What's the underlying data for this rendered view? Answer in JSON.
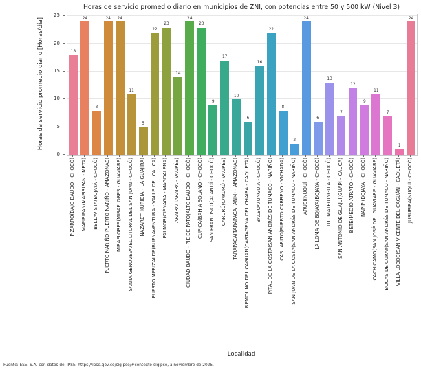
{
  "figure": {
    "title": "Horas de servicio promedio diario en municipios de ZNI, con potencias entre 50 y 500 kW (Nivel 3)",
    "xlabel": "Localidad",
    "ylabel": "Horas de servicio promedio diario [Horas/día]",
    "footer": "Fuente: ESEI S.A. con datos del IPSE, https://ipse.gov.co/sigipse/#contexto-sigipse, a noviembre de 2025."
  },
  "chart_data": {
    "type": "bar",
    "title": "Horas de servicio promedio diario en municipios de ZNI, con potencias entre 50 y 500 kW (Nivel 3)",
    "xlabel": "Localidad",
    "ylabel": "Horas de servicio promedio diario [Horas/día]",
    "ylim": [
      0,
      25.3
    ],
    "yticks": [
      0,
      5,
      10,
      15,
      20,
      25
    ],
    "grid": true,
    "legend": false,
    "value_labels_shown": true,
    "background_color": "#ffffff",
    "grid_color": "#e7e7e7",
    "spine_color": "#c9c9cf",
    "categories": [
      "PIZARRO(BAJO BAUDÓ - CHOCÓ)",
      "MAPIRIPAN(MAPIRIPAN - META)",
      "BELLAVISTA(BOJAYÁ - CHOCÓ)",
      "PUERTO NARIÑO(PUERTO NARIÑO - AMAZONAS)",
      "MIRAFLORES(MIRAFLORES - GUAVIARE)",
      "SANTA GENOVEVA(EL LITORAL DEL SAN JUAN - CHOCÓ)",
      "NAZARETH(URIBIA - LA GUAJIRA)",
      "PUERTO MERIZALDE(BUENAVENTURA - VALLE DEL CAUCA)",
      "PALMOR(CIÉNAGA - MAGDALENA)",
      "TARAIRA(TARAIRA - VAUPÉS)",
      "CIUDAD BAUDO - PIE DE PATO(ALTO BAUDO - CHOCÓ)",
      "CUPICA(BAHÍA SOLANO - CHOCÓ)",
      "SAN FRANCISCO(ACANDÍ - CHOCÓ)",
      "CARURÚ(CARURÚ - VAUPÉS)",
      "TARAPACA(TARAPACA (ANM) - AMAZONAS)",
      "REMOLINO DEL CAGUAN(CARTAGENA DEL CHAIRA - CAQUETÁ)",
      "BALBOA(UNGUÍA - CHOCÓ)",
      "PITAL DE LA COSTA(SAN ANDRÉS DE TUMACO - NARIÑO)",
      "CASUARITO(PUERTO CARREÑO - VICHADA)",
      "SAN JUAN DE LA COSTA(SAN ANDRÉS DE TUMACO - NARIÑO)",
      "ARUSI(NUQUÍ - CHOCÓ)",
      "LA LOMA DE BOJAYA(BOJAYÁ - CHOCÓ)",
      "TITUMATE(UNGUÍA - CHOCÓ)",
      "SAN ANTONIO DE GUAJUI(GUAPI - CAUCA)",
      "BETE(MEDIO ATRATO - CHOCÓ)",
      "NAPIPI(BOJAYÁ - CHOCÓ)",
      "CACHICAMO(SAN JOSÉ DEL GUAVIARE - GUAVIARE)",
      "BOCAS DE CURAY(SAN ANDRÉS DE TUMACO - NARIÑO)",
      "VILLA LOBOS(SAN VICENTE DEL CAGUÁN - CAQUETÁ)",
      "JURUBIRA(NUQUÍ - CHOCÓ)"
    ],
    "values": [
      18,
      24,
      8,
      24,
      24,
      11,
      5,
      22,
      23,
      14,
      24,
      23,
      9,
      17,
      10,
      6,
      16,
      22,
      8,
      2,
      24,
      6,
      13,
      7,
      12,
      9,
      11,
      7,
      1,
      24
    ],
    "bar_colors": [
      "#e87f97",
      "#e8815f",
      "#dd8545",
      "#cf8b39",
      "#c38f38",
      "#b79339",
      "#aa973a",
      "#9d9c3b",
      "#8da13e",
      "#76a643",
      "#57ab48",
      "#3ead5d",
      "#38ab7a",
      "#39a98c",
      "#3aa79b",
      "#3ba5a6",
      "#3ba4b2",
      "#3ca2c2",
      "#41a0cf",
      "#479dd9",
      "#5899e0",
      "#7e9ae9",
      "#9b92ec",
      "#b189ea",
      "#c282e5",
      "#d07cde",
      "#dc77d1",
      "#e574c1",
      "#ea73ac",
      "#e87b96"
    ]
  }
}
